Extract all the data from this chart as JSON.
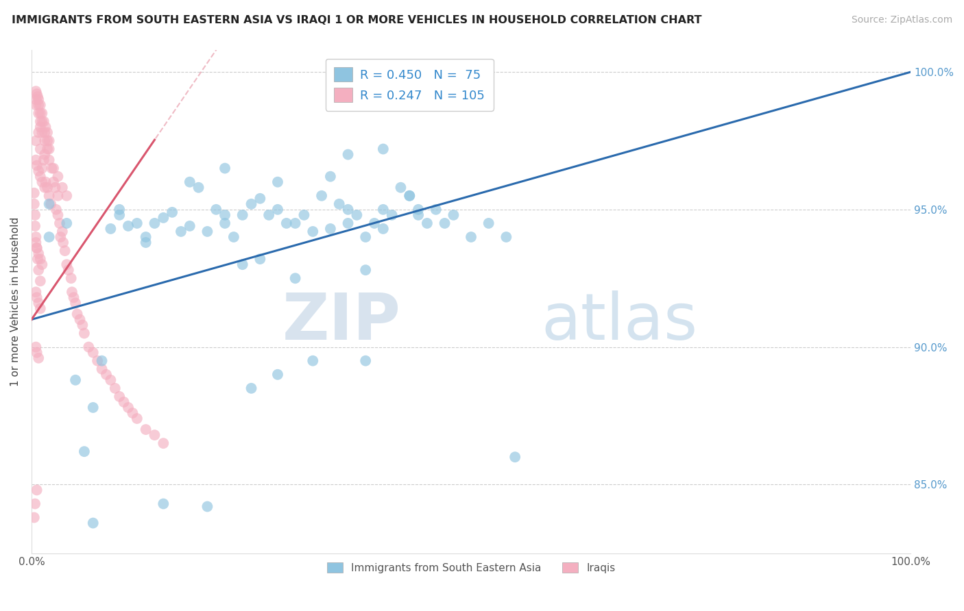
{
  "title": "IMMIGRANTS FROM SOUTH EASTERN ASIA VS IRAQI 1 OR MORE VEHICLES IN HOUSEHOLD CORRELATION CHART",
  "source": "Source: ZipAtlas.com",
  "ylabel": "1 or more Vehicles in Household",
  "xlim": [
    0.0,
    1.0
  ],
  "ylim": [
    0.825,
    1.008
  ],
  "x_tick_labels": [
    "0.0%",
    "100.0%"
  ],
  "x_tick_values": [
    0.0,
    1.0
  ],
  "y_tick_values": [
    0.85,
    0.9,
    0.95,
    1.0
  ],
  "right_tick_labels": [
    "85.0%",
    "90.0%",
    "95.0%",
    "100.0%"
  ],
  "blue_color": "#8fc4e0",
  "pink_color": "#f4afc0",
  "blue_line_color": "#2a6aad",
  "pink_line_color": "#d9566e",
  "watermark_zip": "ZIP",
  "watermark_atlas": "atlas",
  "legend_entries": [
    "R = 0.450   N =  75",
    "R = 0.247   N = 105"
  ],
  "bottom_legend": [
    "Immigrants from South Eastern Asia",
    "Iraqis"
  ],
  "blue_scatter_x": [
    0.02,
    0.02,
    0.04,
    0.05,
    0.06,
    0.07,
    0.07,
    0.08,
    0.09,
    0.1,
    0.1,
    0.11,
    0.12,
    0.13,
    0.13,
    0.14,
    0.15,
    0.16,
    0.17,
    0.18,
    0.18,
    0.19,
    0.2,
    0.21,
    0.22,
    0.22,
    0.23,
    0.24,
    0.25,
    0.26,
    0.27,
    0.28,
    0.29,
    0.3,
    0.31,
    0.32,
    0.33,
    0.34,
    0.35,
    0.36,
    0.36,
    0.37,
    0.38,
    0.39,
    0.4,
    0.4,
    0.41,
    0.42,
    0.43,
    0.44,
    0.44,
    0.45,
    0.46,
    0.47,
    0.48,
    0.5,
    0.52,
    0.54,
    0.55,
    0.38,
    0.24,
    0.26,
    0.3,
    0.22,
    0.28,
    0.34,
    0.36,
    0.4,
    0.43,
    0.38,
    0.32,
    0.28,
    0.25,
    0.2,
    0.15
  ],
  "blue_scatter_y": [
    0.952,
    0.94,
    0.945,
    0.888,
    0.862,
    0.836,
    0.878,
    0.895,
    0.943,
    0.948,
    0.95,
    0.944,
    0.945,
    0.94,
    0.938,
    0.945,
    0.947,
    0.949,
    0.942,
    0.944,
    0.96,
    0.958,
    0.942,
    0.95,
    0.948,
    0.945,
    0.94,
    0.948,
    0.952,
    0.954,
    0.948,
    0.95,
    0.945,
    0.945,
    0.948,
    0.942,
    0.955,
    0.943,
    0.952,
    0.95,
    0.945,
    0.948,
    0.94,
    0.945,
    0.943,
    0.95,
    0.948,
    0.958,
    0.955,
    0.95,
    0.948,
    0.945,
    0.95,
    0.945,
    0.948,
    0.94,
    0.945,
    0.94,
    0.86,
    0.928,
    0.93,
    0.932,
    0.925,
    0.965,
    0.96,
    0.962,
    0.97,
    0.972,
    0.955,
    0.895,
    0.895,
    0.89,
    0.885,
    0.842,
    0.843
  ],
  "pink_scatter_x": [
    0.005,
    0.008,
    0.01,
    0.01,
    0.012,
    0.014,
    0.015,
    0.016,
    0.018,
    0.02,
    0.022,
    0.023,
    0.025,
    0.027,
    0.028,
    0.03,
    0.03,
    0.032,
    0.033,
    0.035,
    0.036,
    0.038,
    0.04,
    0.042,
    0.045,
    0.046,
    0.048,
    0.05,
    0.052,
    0.055,
    0.058,
    0.06,
    0.065,
    0.07,
    0.075,
    0.08,
    0.085,
    0.09,
    0.095,
    0.1,
    0.105,
    0.11,
    0.115,
    0.12,
    0.13,
    0.14,
    0.15,
    0.005,
    0.008,
    0.01,
    0.012,
    0.015,
    0.018,
    0.02,
    0.025,
    0.03,
    0.035,
    0.04,
    0.005,
    0.008,
    0.01,
    0.012,
    0.015,
    0.018,
    0.02,
    0.005,
    0.006,
    0.007,
    0.008,
    0.01,
    0.012,
    0.014,
    0.016,
    0.018,
    0.02,
    0.005,
    0.006,
    0.008,
    0.01,
    0.012,
    0.015,
    0.005,
    0.006,
    0.008,
    0.01,
    0.012,
    0.005,
    0.006,
    0.008,
    0.01,
    0.005,
    0.006,
    0.008,
    0.003,
    0.003,
    0.004,
    0.004,
    0.005,
    0.006,
    0.007,
    0.008,
    0.01,
    0.006,
    0.004,
    0.003
  ],
  "pink_scatter_y": [
    0.975,
    0.978,
    0.98,
    0.972,
    0.965,
    0.968,
    0.97,
    0.96,
    0.958,
    0.955,
    0.952,
    0.965,
    0.96,
    0.958,
    0.95,
    0.948,
    0.955,
    0.945,
    0.94,
    0.942,
    0.938,
    0.935,
    0.93,
    0.928,
    0.925,
    0.92,
    0.918,
    0.916,
    0.912,
    0.91,
    0.908,
    0.905,
    0.9,
    0.898,
    0.895,
    0.892,
    0.89,
    0.888,
    0.885,
    0.882,
    0.88,
    0.878,
    0.876,
    0.874,
    0.87,
    0.868,
    0.865,
    0.988,
    0.985,
    0.982,
    0.978,
    0.975,
    0.972,
    0.968,
    0.965,
    0.962,
    0.958,
    0.955,
    0.99,
    0.988,
    0.985,
    0.982,
    0.978,
    0.975,
    0.972,
    0.993,
    0.992,
    0.991,
    0.99,
    0.988,
    0.985,
    0.982,
    0.98,
    0.978,
    0.975,
    0.968,
    0.966,
    0.964,
    0.962,
    0.96,
    0.958,
    0.938,
    0.936,
    0.934,
    0.932,
    0.93,
    0.92,
    0.918,
    0.916,
    0.914,
    0.9,
    0.898,
    0.896,
    0.956,
    0.952,
    0.948,
    0.944,
    0.94,
    0.936,
    0.932,
    0.928,
    0.924,
    0.848,
    0.843,
    0.838
  ]
}
